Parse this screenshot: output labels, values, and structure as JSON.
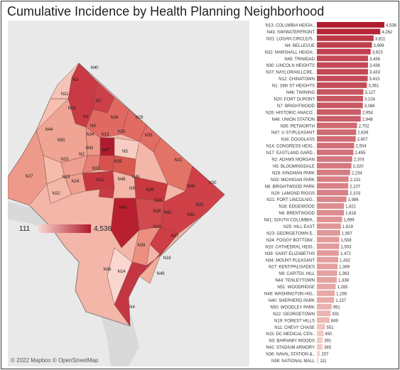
{
  "title": "Cumulative Incidence by Health Planning Neighborhood",
  "attribution": "© 2022 Mapbox © OpenStreetMap",
  "legend": {
    "min_label": "111",
    "max_label": "4,536",
    "min": 111,
    "max": 4536
  },
  "colors": {
    "low": "#f9d6cf",
    "high": "#b11a2e",
    "water": "#d9d9d9",
    "land": "#e9e9e9"
  },
  "map_labels": [
    "N40",
    "N11",
    "N19",
    "N44",
    "N7",
    "N1",
    "N38",
    "N29",
    "N33",
    "N34",
    "N13",
    "N15",
    "N10",
    "N50",
    "N27",
    "N41",
    "N47",
    "N5",
    "N22",
    "N24",
    "N31",
    "N12",
    "N45",
    "N21",
    "N46",
    "N30",
    "N20",
    "N32",
    "N43",
    "N23",
    "N25",
    "N26",
    "N42",
    "N37",
    "N35",
    "N39",
    "N9",
    "N18",
    "N49",
    "N28",
    "N36",
    "N4",
    "N48",
    "N16",
    "N3",
    "N8",
    "N14",
    "N2"
  ],
  "chart_data": {
    "type": "bar",
    "orientation": "horizontal",
    "title": "Cumulative Incidence by Health Planning Neighborhood",
    "categories": [
      "N13: COLUMBIA HEIGH..",
      "N43: SW/WATERFRONT",
      "N31: LOGAN CIRCLE/S..",
      "N4: BELLEVUE",
      "N32: MARSHALL HEIGH..",
      "N45: TRINIDAD",
      "N30: LINCOLN HEIGHTS",
      "N37: NAYLOR/HILLCRE..",
      "N12: CHINATOWN",
      "N1: 16th ST HEIGHTS",
      "N46: TWINING",
      "N20: FORT DUPONT",
      "N7: BRIGHTWOOD",
      "N26: HISTORIC ANACO..",
      "N48: UNION STATION",
      "N35: PETWORTH",
      "N47: U ST/PLEASANT",
      "N16: DOUGLASS",
      "N14: CONGRESS HEIG..",
      "N17: EASTLAND GARD..",
      "N2: ADAMS MORGAN",
      "N5: BLOOMINGDALE",
      "N28: KINGMAN PARK",
      "N33: MICHIGAN PARK",
      "N8: BRIGHTWOOD PARK",
      "N29: LAMOND RIGGS",
      "N21: FORT LINCOLN/G..",
      "N18: EDGEWOOD",
      "N6: BRENTWOOD",
      "N41: SOUTH COLUMBIA..",
      "N25: HILL EAST",
      "N23: GEORGETOWN E..",
      "N24: FOGGY BOTTOM/..",
      "N10: CATHEDRAL HEIG..",
      "N39: SAINT ELIZABETHS",
      "N34: MOUNT PLEASANT",
      "N27: KENT/PALISADES",
      "N9: CAPITOL HILL",
      "N44: TENLEYTOWN",
      "N51: WOODRIDGE",
      "N49: WASHINGTON HIG..",
      "N40: SHEPHERD PARK",
      "N50: WOODLEY PARK",
      "N22: GEORGETOWN",
      "N19: FOREST HILLS",
      "N11: CHEVY CHASE",
      "N15: DC MEDICAL CEN..",
      "N3: BARNABY WOODS",
      "N42: STADIUM ARMORY",
      "N36: NAVAL STATION &..",
      "N38: NATIONAL MALL"
    ],
    "values": [
      4536,
      4262,
      3811,
      3699,
      3615,
      3436,
      3436,
      3433,
      3415,
      3361,
      3127,
      3104,
      3086,
      2954,
      2948,
      2702,
      2639,
      2607,
      2504,
      2455,
      2374,
      2320,
      2234,
      2131,
      2107,
      2103,
      1986,
      1821,
      1818,
      1699,
      1619,
      1567,
      1508,
      1503,
      1472,
      1432,
      1389,
      1363,
      1338,
      1265,
      1198,
      1157,
      991,
      931,
      849,
      551,
      450,
      391,
      385,
      207,
      111
    ],
    "value_labels": [
      "4,536",
      "4,262",
      "3,811",
      "3,699",
      "3,615",
      "3,436",
      "3,436",
      "3,433",
      "3,415",
      "3,361",
      "3,127",
      "3,104",
      "3,086",
      "2,954",
      "2,948",
      "2,702",
      "2,639",
      "2,607",
      "2,504",
      "2,455",
      "2,374",
      "2,320",
      "2,234",
      "2,131",
      "2,107",
      "2,103",
      "1,986",
      "1,821",
      "1,818",
      "1,699",
      "1,619",
      "1,567",
      "1,508",
      "1,503",
      "1,472",
      "1,432",
      "1,389",
      "1,363",
      "1,338",
      "1,265",
      "1,198",
      "1,157",
      "991",
      "931",
      "849",
      "551",
      "450",
      "391",
      "385",
      "207",
      "111"
    ]
  }
}
